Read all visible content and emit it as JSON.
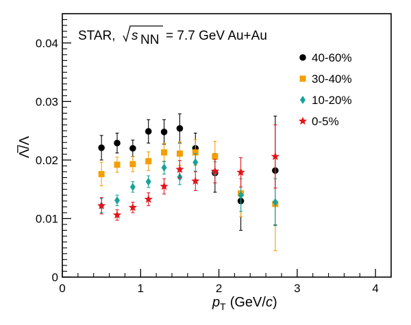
{
  "chart_data": {
    "type": "scatter",
    "title": "",
    "annotation": {
      "prefix": "STAR,",
      "sqrt_var": "s",
      "sqrt_sub": "NN",
      "suffix": "= 7.7 GeV Au+Au"
    },
    "xlabel": {
      "main": "p",
      "sub": "T",
      "unit_open": "(GeV/",
      "unit_var": "c",
      "unit_close": ")"
    },
    "ylabel": "Λ̅/Λ",
    "xlim": [
      0,
      4.2
    ],
    "ylim": [
      0,
      0.045
    ],
    "x_ticks": [
      0,
      1,
      2,
      3,
      4
    ],
    "x_tick_labels": [
      "0",
      "1",
      "2",
      "3",
      "4"
    ],
    "y_ticks": [
      0,
      0.01,
      0.02,
      0.03,
      0.04
    ],
    "y_tick_labels": [
      "0",
      "0.01",
      "0.02",
      "0.03",
      "0.04"
    ],
    "legend_position": "top-right",
    "series": [
      {
        "name": "40-60%",
        "marker": "circle",
        "color": "#000000",
        "points": [
          {
            "x": 0.5,
            "y": 0.0221,
            "err": 0.0021
          },
          {
            "x": 0.7,
            "y": 0.0229,
            "err": 0.0017
          },
          {
            "x": 0.9,
            "y": 0.022,
            "err": 0.0014
          },
          {
            "x": 1.1,
            "y": 0.0249,
            "err": 0.002
          },
          {
            "x": 1.3,
            "y": 0.0248,
            "err": 0.0021
          },
          {
            "x": 1.5,
            "y": 0.0254,
            "err": 0.0025
          },
          {
            "x": 1.7,
            "y": 0.022,
            "err": 0.0026
          },
          {
            "x": 1.95,
            "y": 0.0178,
            "err": 0.0033
          },
          {
            "x": 2.28,
            "y": 0.013,
            "err": 0.005
          },
          {
            "x": 2.72,
            "y": 0.0182,
            "err": 0.0093
          }
        ]
      },
      {
        "name": "30-40%",
        "marker": "square",
        "color": "#f29f05",
        "points": [
          {
            "x": 0.5,
            "y": 0.0176,
            "err": 0.002
          },
          {
            "x": 0.7,
            "y": 0.0192,
            "err": 0.0013
          },
          {
            "x": 0.9,
            "y": 0.0193,
            "err": 0.0013
          },
          {
            "x": 1.1,
            "y": 0.0198,
            "err": 0.0016
          },
          {
            "x": 1.3,
            "y": 0.0213,
            "err": 0.0016
          },
          {
            "x": 1.5,
            "y": 0.0211,
            "err": 0.002
          },
          {
            "x": 1.7,
            "y": 0.0213,
            "err": 0.0022
          },
          {
            "x": 1.95,
            "y": 0.0206,
            "err": 0.0026
          },
          {
            "x": 2.28,
            "y": 0.0143,
            "err": 0.004
          },
          {
            "x": 2.72,
            "y": 0.0125,
            "err": 0.008
          }
        ]
      },
      {
        "name": "10-20%",
        "marker": "diamond",
        "color": "#17a39a",
        "points": [
          {
            "x": 0.5,
            "y": 0.0122,
            "err": 0.0012
          },
          {
            "x": 0.7,
            "y": 0.0131,
            "err": 0.0009
          },
          {
            "x": 0.9,
            "y": 0.0154,
            "err": 0.0009
          },
          {
            "x": 1.1,
            "y": 0.0163,
            "err": 0.001
          },
          {
            "x": 1.3,
            "y": 0.0187,
            "err": 0.0011
          },
          {
            "x": 1.5,
            "y": 0.0171,
            "err": 0.0013
          },
          {
            "x": 1.7,
            "y": 0.0196,
            "err": 0.0015
          },
          {
            "x": 1.95,
            "y": 0.0179,
            "err": 0.0018
          },
          {
            "x": 2.28,
            "y": 0.014,
            "err": 0.0028
          },
          {
            "x": 2.72,
            "y": 0.0128,
            "err": 0.004
          }
        ]
      },
      {
        "name": "0-5%",
        "marker": "star",
        "color": "#e0161c",
        "points": [
          {
            "x": 0.5,
            "y": 0.0122,
            "err": 0.0014
          },
          {
            "x": 0.7,
            "y": 0.0106,
            "err": 0.0009
          },
          {
            "x": 0.9,
            "y": 0.0119,
            "err": 0.0009
          },
          {
            "x": 1.1,
            "y": 0.0133,
            "err": 0.0011
          },
          {
            "x": 1.3,
            "y": 0.0155,
            "err": 0.0013
          },
          {
            "x": 1.5,
            "y": 0.0184,
            "err": 0.0015
          },
          {
            "x": 1.7,
            "y": 0.0164,
            "err": 0.0016
          },
          {
            "x": 1.95,
            "y": 0.0181,
            "err": 0.002
          },
          {
            "x": 2.28,
            "y": 0.0179,
            "err": 0.0025
          },
          {
            "x": 2.72,
            "y": 0.0206,
            "err": 0.0054
          }
        ]
      }
    ]
  }
}
